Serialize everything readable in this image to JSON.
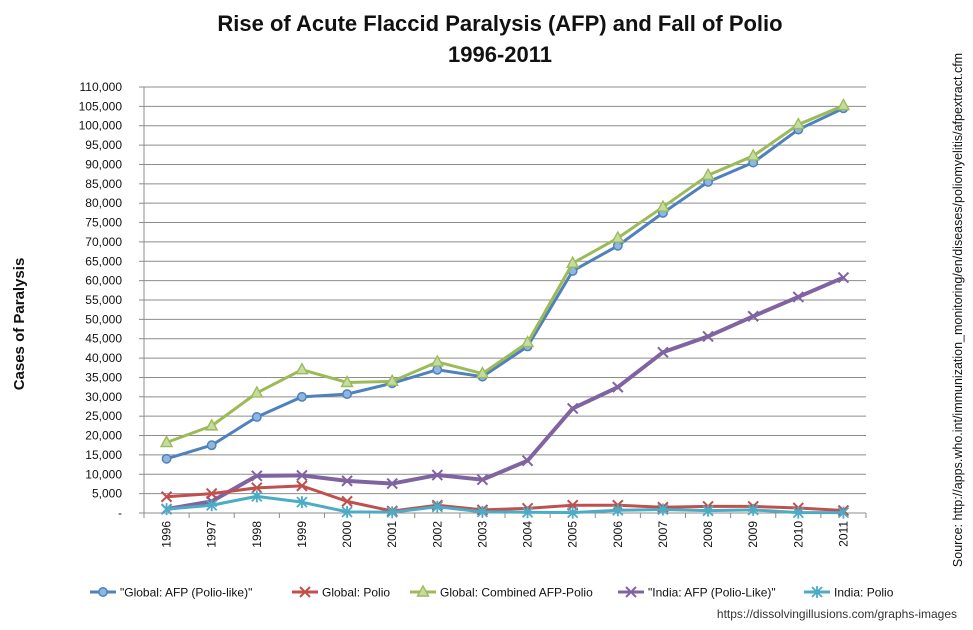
{
  "chart_data": {
    "type": "line",
    "title": "Rise of Acute Flaccid Paralysis (AFP) and Fall of Polio",
    "subtitle": "1996-2011",
    "ylabel": "Cases of Paralysis",
    "xlabel": "",
    "ylim": [
      0,
      110000
    ],
    "y_ticks": [
      {
        "value": 0,
        "label": "-"
      },
      {
        "value": 5000,
        "label": "5,000"
      },
      {
        "value": 10000,
        "label": "10,000"
      },
      {
        "value": 15000,
        "label": "15,000"
      },
      {
        "value": 20000,
        "label": "20,000"
      },
      {
        "value": 25000,
        "label": "25,000"
      },
      {
        "value": 30000,
        "label": "30,000"
      },
      {
        "value": 35000,
        "label": "35,000"
      },
      {
        "value": 40000,
        "label": "40,000"
      },
      {
        "value": 45000,
        "label": "45,000"
      },
      {
        "value": 50000,
        "label": "50,000"
      },
      {
        "value": 55000,
        "label": "55,000"
      },
      {
        "value": 60000,
        "label": "60,000"
      },
      {
        "value": 65000,
        "label": "65,000"
      },
      {
        "value": 70000,
        "label": "70,000"
      },
      {
        "value": 75000,
        "label": "75,000"
      },
      {
        "value": 80000,
        "label": "80,000"
      },
      {
        "value": 85000,
        "label": "85,000"
      },
      {
        "value": 90000,
        "label": "90,000"
      },
      {
        "value": 95000,
        "label": "95,000"
      },
      {
        "value": 100000,
        "label": "100,000"
      },
      {
        "value": 105000,
        "label": "105,000"
      },
      {
        "value": 110000,
        "label": "110,000"
      }
    ],
    "categories": [
      "1996",
      "1997",
      "1998",
      "1999",
      "2000",
      "2001",
      "2002",
      "2003",
      "2004",
      "2005",
      "2006",
      "2007",
      "2008",
      "2009",
      "2010",
      "2011"
    ],
    "grid": true,
    "legend_position": "bottom",
    "series": [
      {
        "name": "\"Global: AFP (Polio-like)\"",
        "color": "#4f81bd",
        "marker": "circle",
        "values": [
          14000,
          17500,
          24800,
          30000,
          30700,
          33500,
          37000,
          35200,
          43000,
          62500,
          69000,
          77500,
          85500,
          90500,
          99000,
          104500
        ]
      },
      {
        "name": "Global: Polio",
        "color": "#c0504d",
        "marker": "x",
        "values": [
          4200,
          5000,
          6500,
          7000,
          3000,
          500,
          2000,
          800,
          1200,
          2000,
          2000,
          1500,
          1700,
          1700,
          1300,
          650
        ]
      },
      {
        "name": "Global: Combined AFP-Polio",
        "color": "#9bbb59",
        "marker": "triangle",
        "values": [
          18200,
          22500,
          31000,
          37000,
          33700,
          34000,
          39000,
          36000,
          44000,
          64500,
          71000,
          79000,
          87200,
          92200,
          100300,
          105200
        ]
      },
      {
        "name": "\"India: AFP (Polio-Like)\"",
        "color": "#8064a2",
        "marker": "x",
        "values": [
          1000,
          3000,
          9600,
          9700,
          8300,
          7600,
          9800,
          8600,
          13500,
          27000,
          32500,
          41500,
          45600,
          50800,
          55800,
          60800
        ]
      },
      {
        "name": "India: Polio",
        "color": "#4bacc6",
        "marker": "asterisk",
        "values": [
          1000,
          2000,
          4300,
          2800,
          300,
          200,
          1600,
          300,
          200,
          100,
          700,
          900,
          600,
          800,
          100,
          100
        ]
      }
    ],
    "annotations": {
      "source": "Source: http://apps.who.int/immunization_monitoring/en/diseases/poliomyelitis/afpextract.cfm",
      "credit": "https://dissolvingillusions.com/graphs-images"
    }
  }
}
